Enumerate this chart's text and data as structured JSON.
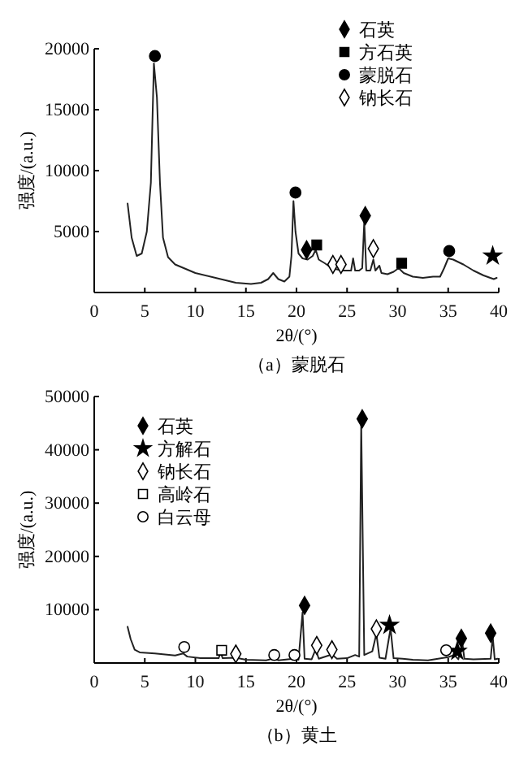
{
  "chart_data": [
    {
      "type": "line",
      "title": "（a）蒙脱石",
      "xlabel": "2θ/(°)",
      "ylabel": "强度/(a.u.)",
      "xlim": [
        0,
        40
      ],
      "ylim": [
        0,
        20000
      ],
      "xticks": [
        0,
        5,
        10,
        15,
        20,
        25,
        30,
        35,
        40
      ],
      "yticks": [
        5000,
        10000,
        15000,
        20000
      ],
      "legend": "top right",
      "series": [
        {
          "color": "#222222",
          "line_style": "solid",
          "x": [
            3.3,
            3.7,
            4.2,
            4.7,
            5.2,
            5.6,
            5.9,
            6.2,
            6.5,
            6.8,
            7.3,
            8,
            10,
            12,
            14,
            15.5,
            16.5,
            17.2,
            17.7,
            18.2,
            18.8,
            19.3,
            19.5,
            19.7,
            19.9,
            20.2,
            20.6,
            21.1,
            21.6,
            21.9,
            22.2,
            22.8,
            23.5,
            24.5,
            25.4,
            25.6,
            25.8,
            26.2,
            26.5,
            26.7,
            26.9,
            27.3,
            27.6,
            27.8,
            28.2,
            28.4,
            29,
            29.6,
            30.1,
            30.6,
            31.5,
            32.5,
            33.5,
            34.2,
            34.6,
            35,
            35.5,
            36.5,
            37.5,
            38.5,
            39.5,
            39.8
          ],
          "values": [
            7300,
            4500,
            3000,
            3200,
            5000,
            9000,
            18800,
            16000,
            9000,
            4500,
            2900,
            2300,
            1600,
            1200,
            800,
            700,
            800,
            1100,
            1600,
            1100,
            900,
            1300,
            3000,
            7500,
            5000,
            3200,
            2800,
            2700,
            3000,
            3500,
            2700,
            2400,
            2000,
            1800,
            1800,
            2800,
            1800,
            1800,
            2000,
            5800,
            1800,
            1800,
            2700,
            1800,
            2200,
            1600,
            1500,
            1700,
            2000,
            1600,
            1300,
            1200,
            1300,
            1300,
            2000,
            2800,
            2700,
            2300,
            1800,
            1400,
            1100,
            1200
          ]
        },
        {
          "type": "scatter",
          "name": "石英",
          "color": "#000000",
          "marker": "diamond",
          "x": [
            21.0,
            26.8
          ],
          "values": [
            3500,
            6300
          ]
        },
        {
          "type": "scatter",
          "name": "方石英",
          "color": "#000000",
          "marker": "square",
          "x": [
            22.0,
            30.4
          ],
          "values": [
            3900,
            2400
          ]
        },
        {
          "type": "scatter",
          "name": "蒙脱石",
          "color": "#000000",
          "marker": "circle",
          "x": [
            6.0,
            19.9,
            35.1
          ],
          "values": [
            19400,
            8200,
            3400
          ]
        },
        {
          "type": "scatter",
          "name": "钠长石",
          "color": "#ffffff",
          "marker": "diamond",
          "x": [
            23.6,
            24.4,
            27.6
          ],
          "values": [
            2300,
            2300,
            3600
          ]
        },
        {
          "type": "scatter",
          "color": "#000000",
          "marker": "star",
          "x": [
            39.4
          ],
          "values": [
            3000
          ]
        }
      ]
    },
    {
      "type": "line",
      "title": "（b）黄土",
      "xlabel": "2θ/(°)",
      "ylabel": "强度/(a.u.)",
      "xlim": [
        0,
        40
      ],
      "ylim": [
        0,
        50000
      ],
      "xticks": [
        0,
        5,
        10,
        15,
        20,
        25,
        30,
        35,
        40
      ],
      "yticks": [
        10000,
        20000,
        30000,
        40000,
        50000
      ],
      "legend": "top left",
      "series": [
        {
          "color": "#222222",
          "line_style": "solid",
          "x": [
            3.3,
            3.6,
            4,
            4.5,
            6,
            8,
            8.8,
            9.2,
            10.5,
            12.3,
            12.5,
            12.7,
            14,
            15,
            17,
            17.8,
            18.2,
            19.7,
            20.2,
            20.6,
            20.8,
            21.5,
            21.9,
            22.2,
            23.5,
            24,
            25,
            25.8,
            26.2,
            26.4,
            26.7,
            27.5,
            27.9,
            28.2,
            28.8,
            29.3,
            29.6,
            30.5,
            31.5,
            33,
            34,
            35,
            35.6,
            36,
            36.4,
            36.6,
            37.5,
            39.2,
            39.4,
            39.6,
            39.9
          ],
          "values": [
            6800,
            4500,
            2500,
            2000,
            1800,
            1400,
            1800,
            1200,
            900,
            900,
            2000,
            900,
            1000,
            600,
            500,
            900,
            500,
            800,
            600,
            9500,
            800,
            700,
            2600,
            800,
            1600,
            800,
            900,
            1500,
            1200,
            45000,
            1500,
            2200,
            5500,
            1000,
            800,
            6500,
            900,
            800,
            600,
            500,
            800,
            1100,
            1500,
            700,
            3800,
            800,
            700,
            800,
            5000,
            700,
            800
          ]
        },
        {
          "type": "scatter",
          "name": "石英",
          "color": "#000000",
          "marker": "diamond",
          "x": [
            20.8,
            26.5,
            36.3,
            39.2
          ],
          "values": [
            10800,
            45800,
            4600,
            5600
          ]
        },
        {
          "type": "scatter",
          "name": "方解石",
          "color": "#000000",
          "marker": "star",
          "x": [
            29.2,
            35.9
          ],
          "values": [
            7100,
            2200
          ]
        },
        {
          "type": "scatter",
          "name": "钠长石",
          "color": "#ffffff",
          "marker": "diamond",
          "x": [
            14.0,
            22.0,
            23.5,
            27.9
          ],
          "values": [
            1700,
            3300,
            2500,
            6400
          ]
        },
        {
          "type": "scatter",
          "name": "高岭石",
          "color": "#ffffff",
          "marker": "square",
          "x": [
            12.6
          ],
          "values": [
            2400
          ]
        },
        {
          "type": "scatter",
          "name": "白云母",
          "color": "#ffffff",
          "marker": "circle",
          "x": [
            8.9,
            17.8,
            19.8,
            34.8
          ],
          "values": [
            3000,
            1500,
            1500,
            2400
          ]
        }
      ]
    }
  ]
}
